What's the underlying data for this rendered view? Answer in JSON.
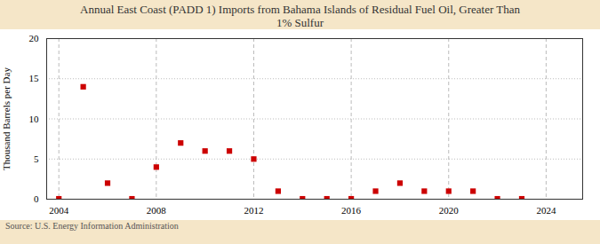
{
  "chart_data": {
    "type": "scatter",
    "title": "Annual East Coast (PADD 1) Imports from Bahama Islands of Residual Fuel Oil, Greater Than\n1% Sulfur",
    "ylabel": "Thousand Barrels per Day",
    "source": "Source: U.S. Energy Information Administration",
    "x": [
      2004,
      2005,
      2006,
      2007,
      2008,
      2009,
      2010,
      2011,
      2012,
      2013,
      2014,
      2015,
      2016,
      2017,
      2018,
      2019,
      2020,
      2021,
      2022,
      2023
    ],
    "values": [
      0.05,
      14.0,
      2.0,
      0.05,
      4.0,
      7.0,
      6.0,
      6.0,
      5.0,
      1.0,
      0.05,
      0.05,
      0.05,
      1.0,
      2.0,
      1.0,
      1.0,
      1.0,
      0.05,
      0.05
    ],
    "color": "#cc0000",
    "marker": "square",
    "xlim": [
      2003.5,
      2025.5
    ],
    "ylim": [
      0,
      20
    ],
    "xticks": [
      2004,
      2008,
      2012,
      2016,
      2020,
      2024
    ],
    "yticks": [
      0,
      5,
      10,
      15,
      20
    ],
    "grid": true
  }
}
